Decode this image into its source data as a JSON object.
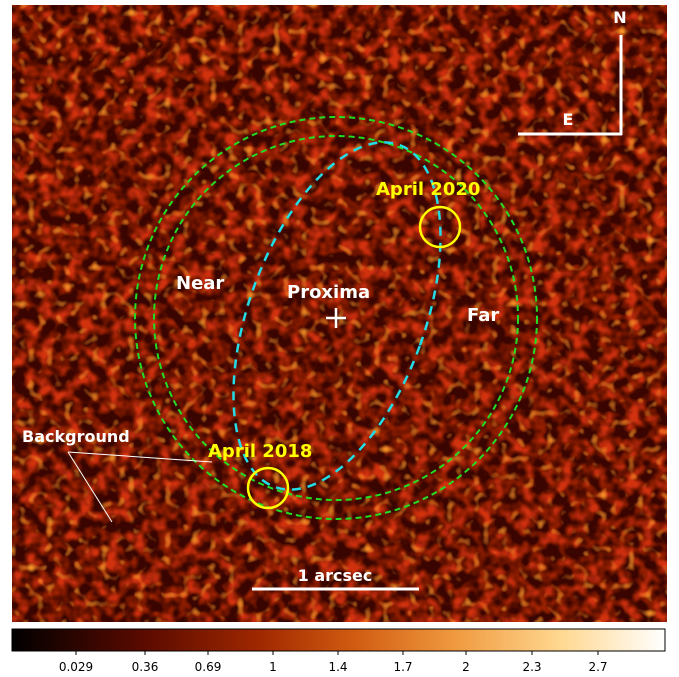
{
  "image": {
    "labels": {
      "north": "N",
      "east": "E",
      "near": "Near",
      "far": "Far",
      "target": "Proxima",
      "epoch_a": "April 2020",
      "epoch_b": "April 2018",
      "background": "Background",
      "scale_bar": "1 arcsec"
    },
    "colors": {
      "background": "#3a0500",
      "noise_bright": "#ff8a1a",
      "green_circles": "#22dd22",
      "cyan_orbit": "#22dde8",
      "yellow_markers": "#ffff00",
      "label_white": "#ffffff",
      "label_yellow": "#ffff00"
    }
  },
  "colorbar": {
    "ticks": [
      "0.029",
      "0.36",
      "0.69",
      "1",
      "1.4",
      "1.7",
      "2",
      "2.3",
      "2.7"
    ]
  }
}
